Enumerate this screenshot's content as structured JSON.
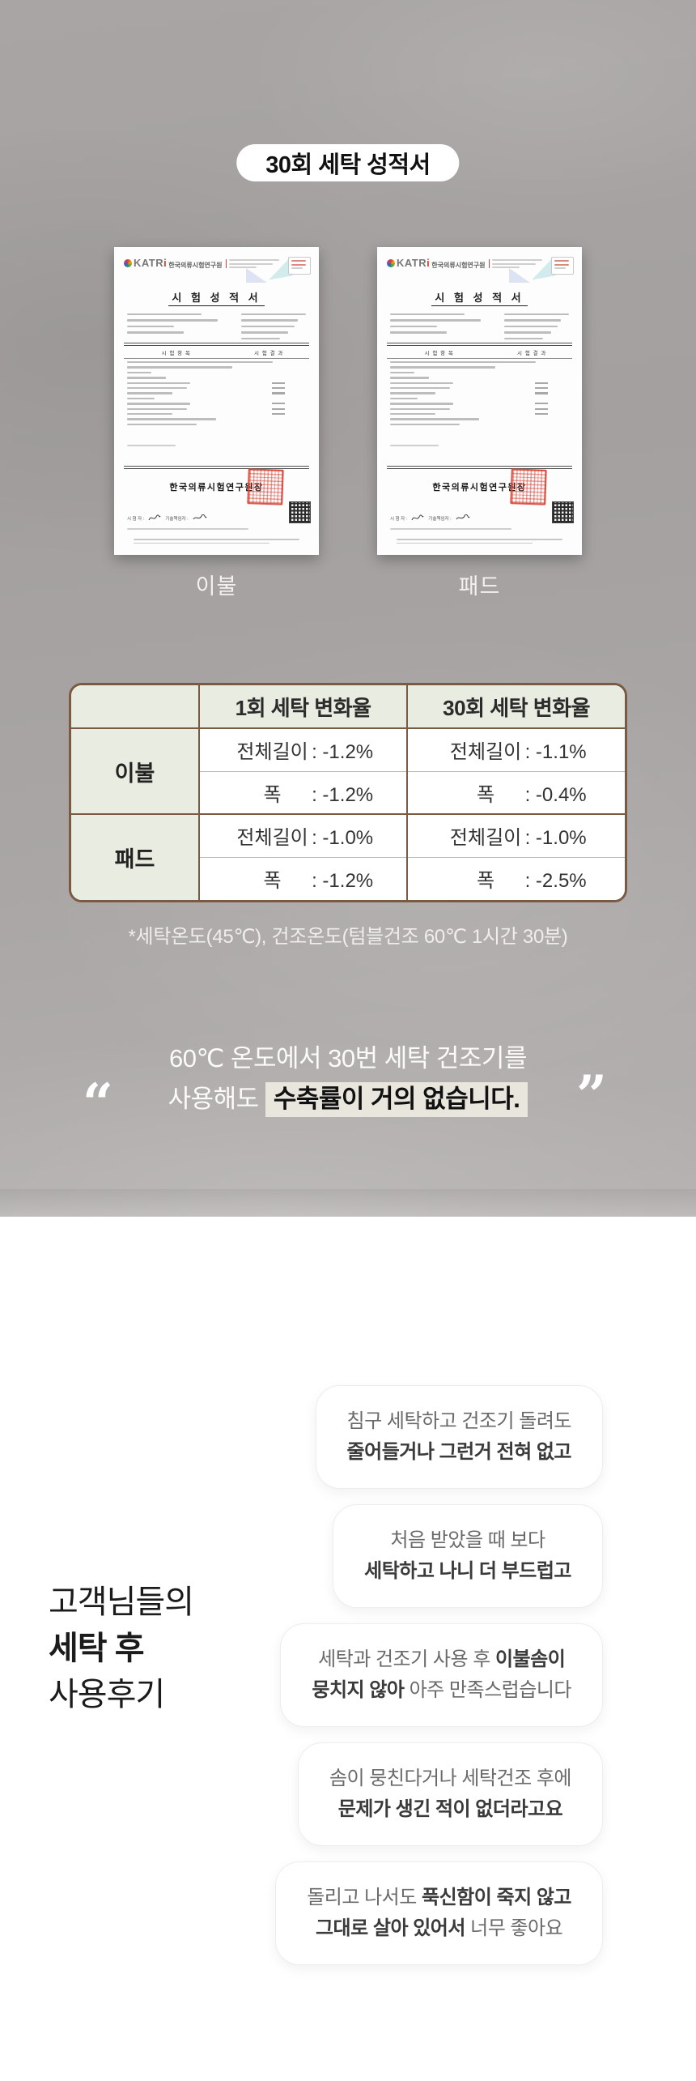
{
  "badge": {
    "label": "30회 세탁 성적서"
  },
  "certificates": {
    "logo_text_main": "KATR",
    "logo_text_i": "i",
    "org_name": "한국의류시험연구원",
    "doc_title": "시 험 성 적 서",
    "table_item_header": "시 험 항 목",
    "table_result_header": "시 험 결 과",
    "director_line": "한국의류시험연구원장",
    "tester_label": "시 험 자 :",
    "manager_label": "기술책임자 :",
    "items": [
      {
        "caption": "이불"
      },
      {
        "caption": "패드"
      }
    ]
  },
  "wash_table": {
    "col_headers": [
      "1회 세탁 변화율",
      "30회 세탁 변화율"
    ],
    "groups": [
      {
        "label": "이불",
        "rows": [
          {
            "cells": [
              {
                "name": "전체길이",
                "value": "-1.2%"
              },
              {
                "name": "전체길이",
                "value": "-1.1%"
              }
            ]
          },
          {
            "cells": [
              {
                "name": "폭",
                "value": "-1.2%"
              },
              {
                "name": "폭",
                "value": "-0.4%"
              }
            ]
          }
        ]
      },
      {
        "label": "패드",
        "rows": [
          {
            "cells": [
              {
                "name": "전체길이",
                "value": "-1.0%"
              },
              {
                "name": "전체길이",
                "value": "-1.0%"
              }
            ]
          },
          {
            "cells": [
              {
                "name": "폭",
                "value": "-1.2%"
              },
              {
                "name": "폭",
                "value": "-2.5%"
              }
            ]
          }
        ]
      }
    ]
  },
  "footnote": "*세탁온도(45℃), 건조온도(텀블건조 60℃ 1시간 30분)",
  "quote": {
    "open_mark": "“",
    "close_mark": "”",
    "line1": "60℃ 온도에서 30번 세탁 건조기를",
    "line2_prefix": "사용해도 ",
    "line2_highlight": "수축률이 거의 없습니다."
  },
  "reviews": {
    "heading_line1": "고객님들의",
    "heading_line2": "세탁 후",
    "heading_line3": "사용후기",
    "bubbles": [
      {
        "lines": [
          [
            {
              "text": "침구 세탁하고 건조기 돌려도",
              "bold": false
            }
          ],
          [
            {
              "text": "줄어들거나 그런거 전혀 없고",
              "bold": true
            }
          ]
        ]
      },
      {
        "lines": [
          [
            {
              "text": "처음 받았을 때 보다",
              "bold": false
            }
          ],
          [
            {
              "text": "세탁하고 나니 더 부드럽고",
              "bold": true
            }
          ]
        ]
      },
      {
        "lines": [
          [
            {
              "text": "세탁과 건조기 사용 후 ",
              "bold": false
            },
            {
              "text": "이불솜이",
              "bold": true
            }
          ],
          [
            {
              "text": "뭉치지 않아",
              "bold": true
            },
            {
              "text": " 아주 만족스럽습니다",
              "bold": false
            }
          ]
        ]
      },
      {
        "lines": [
          [
            {
              "text": "솜이 뭉친다거나 세탁건조 후에",
              "bold": false
            }
          ],
          [
            {
              "text": "문제가 생긴 적이 없더라고요",
              "bold": true
            }
          ]
        ]
      },
      {
        "lines": [
          [
            {
              "text": "돌리고 나서도 ",
              "bold": false
            },
            {
              "text": "푹신함이 죽지 않고",
              "bold": true
            }
          ],
          [
            {
              "text": "그대로 살아 있어서",
              "bold": true
            },
            {
              "text": " 너무 좋아요",
              "bold": false
            }
          ]
        ]
      }
    ]
  },
  "colors": {
    "background_gray": "#a6a3a2",
    "table_border_dark": "#7b5a44",
    "table_border_light": "#cbb6a5",
    "table_header_bg": "#e9ece0",
    "quote_highlight_bg": "#e9e6de",
    "stamp_red": "#d44435"
  }
}
